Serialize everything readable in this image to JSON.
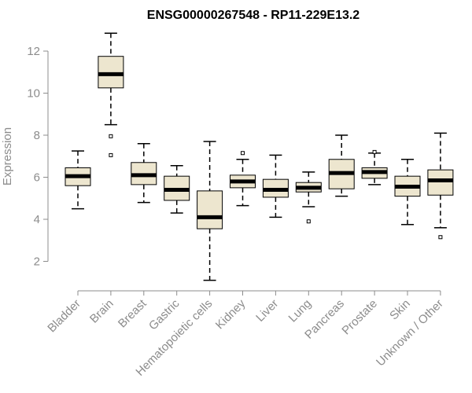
{
  "chart_data": {
    "type": "box",
    "title": "ENSG00000267548 - RP11-229E13.2",
    "ylabel": "Expression",
    "xlabel": "",
    "ylim": [
      1,
      13
    ],
    "yticks": [
      2,
      4,
      6,
      8,
      10,
      12
    ],
    "colors": {
      "box_fill": "#ede6cf",
      "box_stroke": "#000000",
      "median": "#000000",
      "axis": "#8c8c8c"
    },
    "categories": [
      "Bladder",
      "Brain",
      "Breast",
      "Gastric",
      "Hematopoietic cells",
      "Kidney",
      "Liver",
      "Lung",
      "Pancreas",
      "Prostate",
      "Skin",
      "Unknown / Other"
    ],
    "boxes": [
      {
        "min": 4.5,
        "q1": 5.6,
        "median": 6.05,
        "q3": 6.45,
        "max": 7.25,
        "outliers": []
      },
      {
        "min": 8.5,
        "q1": 10.25,
        "median": 10.9,
        "q3": 11.75,
        "max": 12.85,
        "outliers": [
          7.95,
          7.05
        ]
      },
      {
        "min": 4.8,
        "q1": 5.65,
        "median": 6.1,
        "q3": 6.7,
        "max": 7.6,
        "outliers": []
      },
      {
        "min": 4.3,
        "q1": 4.9,
        "median": 5.4,
        "q3": 6.05,
        "max": 6.55,
        "outliers": []
      },
      {
        "min": 1.1,
        "q1": 3.55,
        "median": 4.1,
        "q3": 5.35,
        "max": 7.7,
        "outliers": []
      },
      {
        "min": 4.65,
        "q1": 5.5,
        "median": 5.8,
        "q3": 6.1,
        "max": 6.85,
        "outliers": [
          7.15
        ]
      },
      {
        "min": 4.1,
        "q1": 5.05,
        "median": 5.4,
        "q3": 5.9,
        "max": 7.05,
        "outliers": []
      },
      {
        "min": 4.6,
        "q1": 5.3,
        "median": 5.5,
        "q3": 5.75,
        "max": 6.25,
        "outliers": [
          3.9
        ]
      },
      {
        "min": 5.1,
        "q1": 5.45,
        "median": 6.2,
        "q3": 6.85,
        "max": 8.0,
        "outliers": []
      },
      {
        "min": 5.65,
        "q1": 5.95,
        "median": 6.25,
        "q3": 6.45,
        "max": 7.15,
        "outliers": [
          7.2
        ]
      },
      {
        "min": 3.75,
        "q1": 5.1,
        "median": 5.55,
        "q3": 6.05,
        "max": 6.85,
        "outliers": []
      },
      {
        "min": 3.6,
        "q1": 5.15,
        "median": 5.85,
        "q3": 6.35,
        "max": 8.1,
        "outliers": [
          3.15
        ]
      }
    ]
  }
}
